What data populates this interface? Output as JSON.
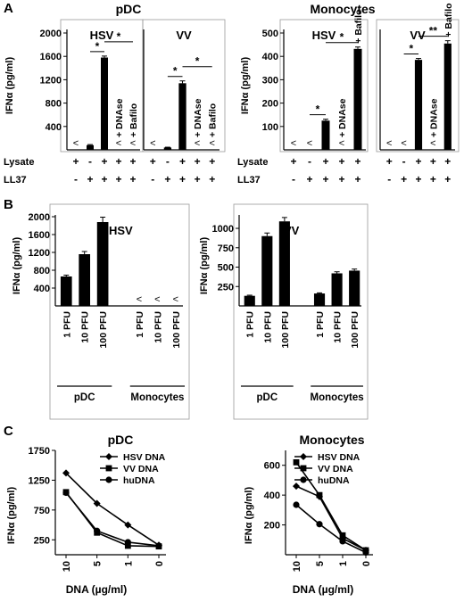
{
  "chart_data": [
    {
      "panel": "A",
      "type": "bar",
      "title": "pDC",
      "ylabel": "IFNα (pg/ml)",
      "row_labels": [
        "Lysate",
        "LL37"
      ],
      "subplots": [
        {
          "title": "HSV",
          "ylim": [
            0,
            2000
          ],
          "yticks": [
            "400",
            "800",
            "1200",
            "1600",
            "2000"
          ],
          "values": [
            0,
            80,
            1580,
            0,
            0
          ],
          "errors": [
            0,
            10,
            25,
            0,
            0
          ],
          "marks": [
            "<",
            "",
            "",
            "<",
            "<"
          ],
          "bar_labels": [
            "",
            "",
            "",
            "+ DNAse",
            "+ Bafilo"
          ],
          "lysate": [
            "+",
            "-",
            "+",
            "+",
            "+"
          ],
          "ll37": [
            "-",
            "+",
            "+",
            "+",
            "+"
          ],
          "stars": [
            {
              "from": 1,
              "to": 2,
              "label": "*"
            },
            {
              "from": 2,
              "to": 4,
              "label": "*"
            }
          ]
        },
        {
          "title": "VV",
          "ylim": [
            0,
            2000
          ],
          "yticks": [],
          "values": [
            0,
            40,
            1140,
            0,
            0
          ],
          "errors": [
            0,
            5,
            40,
            0,
            0
          ],
          "marks": [
            "<",
            "",
            "",
            "<",
            "<"
          ],
          "bar_labels": [
            "",
            "",
            "",
            "+ DNAse",
            "+ Bafilo"
          ],
          "lysate": [
            "+",
            "-",
            "+",
            "+",
            "+"
          ],
          "ll37": [
            "-",
            "+",
            "+",
            "+",
            "+"
          ],
          "stars": [
            {
              "from": 1,
              "to": 2,
              "label": "*"
            },
            {
              "from": 2,
              "to": 4,
              "label": "*"
            }
          ]
        }
      ]
    },
    {
      "panel": "A",
      "type": "bar",
      "title": "Monocytes",
      "ylabel": "IFNα (pg/ml)",
      "row_labels": [
        "Lysate",
        "LL37"
      ],
      "subplots": [
        {
          "title": "HSV",
          "ylim": [
            0,
            500
          ],
          "yticks": [
            "100",
            "200",
            "300",
            "400",
            "500"
          ],
          "values": [
            0,
            0,
            125,
            0,
            432
          ],
          "errors": [
            0,
            0,
            6,
            0,
            8
          ],
          "marks": [
            "<",
            "<",
            "",
            "<",
            ""
          ],
          "bar_labels": [
            "",
            "",
            "",
            "+ DNAse",
            "+ Bafilo"
          ],
          "lysate": [
            "+",
            "-",
            "+",
            "+",
            "+"
          ],
          "ll37": [
            "-",
            "+",
            "+",
            "+",
            "+"
          ],
          "stars": [
            {
              "from": 1,
              "to": 2,
              "label": "*"
            },
            {
              "from": 2,
              "to": 4,
              "label": "*"
            }
          ]
        },
        {
          "title": "VV",
          "ylim": [
            0,
            500
          ],
          "yticks": [],
          "values": [
            0,
            0,
            385,
            0,
            455
          ],
          "errors": [
            0,
            0,
            6,
            0,
            12
          ],
          "marks": [
            "<",
            "<",
            "",
            "<",
            ""
          ],
          "bar_labels": [
            "",
            "",
            "",
            "+ DNAse",
            "+ Bafilo"
          ],
          "lysate": [
            "+",
            "-",
            "+",
            "+",
            "+"
          ],
          "ll37": [
            "-",
            "+",
            "+",
            "+",
            "+"
          ],
          "stars": [
            {
              "from": 1,
              "to": 2,
              "label": "*"
            },
            {
              "from": 2,
              "to": 4,
              "label": "**"
            }
          ]
        }
      ]
    },
    {
      "panel": "B",
      "type": "bar",
      "title": "HSV",
      "ylabel": "IFNα (pg/ml)",
      "ylim": [
        0,
        2000
      ],
      "yticks": [
        "400",
        "800",
        "1200",
        "1600",
        "2000"
      ],
      "categories": [
        "1 PFU",
        "10 PFU",
        "100 PFU",
        "1 PFU",
        "10 PFU",
        "100 PFU"
      ],
      "values": [
        660,
        1160,
        1880,
        0,
        0,
        0
      ],
      "errors": [
        30,
        60,
        110,
        0,
        0,
        0
      ],
      "marks": [
        "",
        "",
        "",
        "<",
        "<",
        "<"
      ],
      "groups": [
        {
          "label": "pDC",
          "from": 0,
          "to": 2
        },
        {
          "label": "Monocytes",
          "from": 3,
          "to": 5
        }
      ]
    },
    {
      "panel": "B",
      "type": "bar",
      "title": "VV",
      "ylabel": "IFNα (pg/ml)",
      "ylim": [
        0,
        1150
      ],
      "yticks": [
        "250",
        "500",
        "750",
        "1000"
      ],
      "categories": [
        "1 PFU",
        "10 PFU",
        "100 PFU",
        "1 PFU",
        "10 PFU",
        "100 PFU"
      ],
      "values": [
        130,
        900,
        1090,
        160,
        420,
        455
      ],
      "errors": [
        8,
        40,
        50,
        8,
        20,
        20
      ],
      "marks": [
        "",
        "",
        "",
        "",
        "",
        ""
      ],
      "groups": [
        {
          "label": "pDC",
          "from": 0,
          "to": 2
        },
        {
          "label": "Monocytes",
          "from": 3,
          "to": 5
        }
      ]
    },
    {
      "panel": "C",
      "type": "line",
      "title": "pDC",
      "ylabel": "IFNα (pg/ml)",
      "xlabel": "DNA (µg/ml)",
      "x": [
        "10",
        "5",
        "1",
        "0"
      ],
      "ylim": [
        0,
        1750
      ],
      "yticks": [
        "250",
        "750",
        "1250",
        "1750"
      ],
      "series": [
        {
          "name": "HSV DNA",
          "marker": "diamond",
          "values": [
            1370,
            860,
            500,
            160
          ]
        },
        {
          "name": "VV DNA",
          "marker": "square",
          "values": [
            1050,
            370,
            150,
            140
          ]
        },
        {
          "name": "huDNA",
          "marker": "circle",
          "values": [
            1040,
            400,
            210,
            150
          ]
        }
      ]
    },
    {
      "panel": "C",
      "type": "line",
      "title": "Monocytes",
      "ylabel": "IFNα (pg/ml)",
      "xlabel": "DNA (µg/ml)",
      "x": [
        "10",
        "5",
        "1",
        "0"
      ],
      "ylim": [
        0,
        700
      ],
      "yticks": [
        "200",
        "400",
        "600"
      ],
      "series": [
        {
          "name": "HSV DNA",
          "marker": "diamond",
          "values": [
            460,
            390,
            110,
            30
          ]
        },
        {
          "name": "VV DNA",
          "marker": "square",
          "values": [
            620,
            400,
            130,
            30
          ]
        },
        {
          "name": "huDNA",
          "marker": "circle",
          "values": [
            335,
            205,
            90,
            15
          ]
        }
      ]
    }
  ],
  "panel_letters": [
    "A",
    "B",
    "C"
  ]
}
